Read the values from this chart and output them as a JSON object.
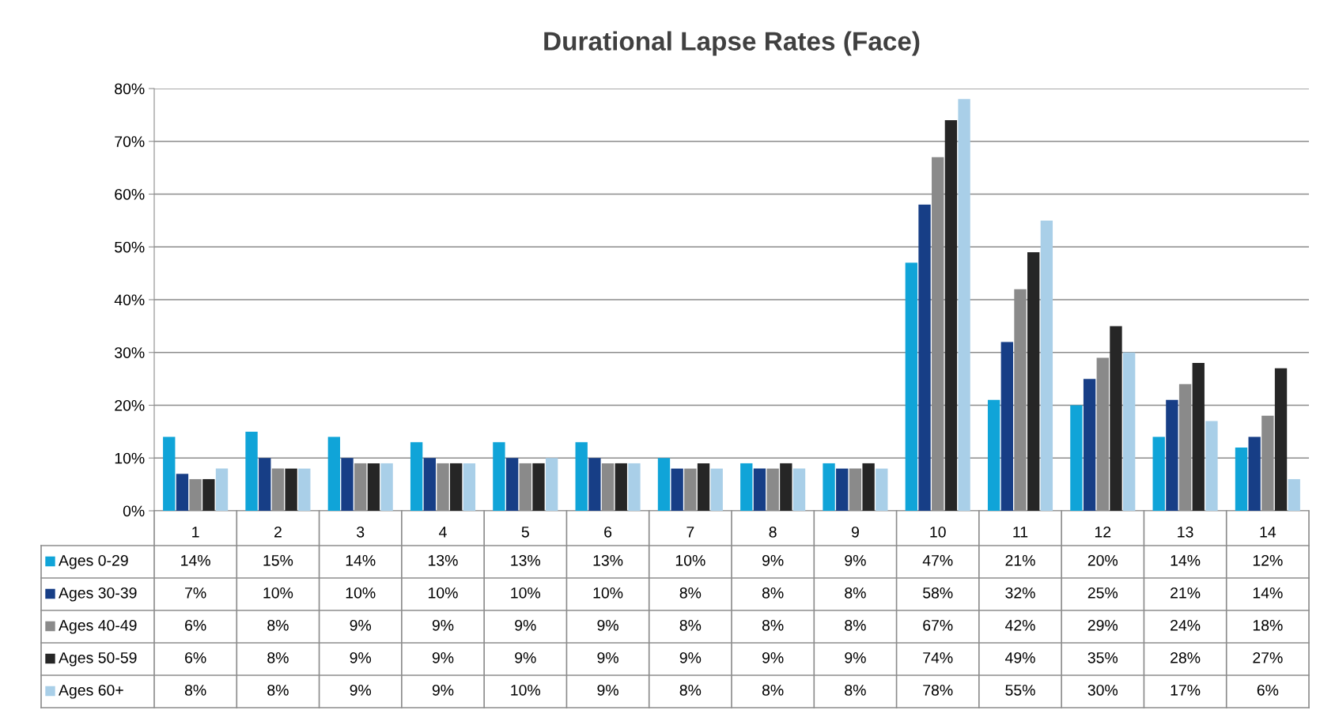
{
  "chart_data": {
    "type": "bar",
    "title": "Durational Lapse Rates (Face)",
    "categories": [
      "1",
      "2",
      "3",
      "4",
      "5",
      "6",
      "7",
      "8",
      "9",
      "10",
      "11",
      "12",
      "13",
      "14"
    ],
    "series": [
      {
        "name": "Ages 0-29",
        "color": "#10a4d8",
        "values": [
          14,
          15,
          14,
          13,
          13,
          13,
          10,
          9,
          9,
          47,
          21,
          20,
          14,
          12
        ],
        "value_labels": [
          "14%",
          "15%",
          "14%",
          "13%",
          "13%",
          "13%",
          "10%",
          "9%",
          "9%",
          "47%",
          "21%",
          "20%",
          "14%",
          "12%"
        ]
      },
      {
        "name": "Ages 30-39",
        "color": "#173e86",
        "values": [
          7,
          10,
          10,
          10,
          10,
          10,
          8,
          8,
          8,
          58,
          32,
          25,
          21,
          14
        ],
        "value_labels": [
          "7%",
          "10%",
          "10%",
          "10%",
          "10%",
          "10%",
          "8%",
          "8%",
          "8%",
          "58%",
          "32%",
          "25%",
          "21%",
          "14%"
        ]
      },
      {
        "name": "Ages 40-49",
        "color": "#8a8a8a",
        "values": [
          6,
          8,
          9,
          9,
          9,
          9,
          8,
          8,
          8,
          67,
          42,
          29,
          24,
          18
        ],
        "value_labels": [
          "6%",
          "8%",
          "9%",
          "9%",
          "9%",
          "9%",
          "8%",
          "8%",
          "8%",
          "67%",
          "42%",
          "29%",
          "24%",
          "18%"
        ]
      },
      {
        "name": "Ages 50-59",
        "color": "#262626",
        "values": [
          6,
          8,
          9,
          9,
          9,
          9,
          9,
          9,
          9,
          74,
          49,
          35,
          28,
          27
        ],
        "value_labels": [
          "6%",
          "8%",
          "9%",
          "9%",
          "9%",
          "9%",
          "9%",
          "9%",
          "9%",
          "74%",
          "49%",
          "35%",
          "28%",
          "27%"
        ]
      },
      {
        "name": "Ages 60+",
        "color": "#a9cfe8",
        "values": [
          8,
          8,
          9,
          9,
          10,
          9,
          8,
          8,
          8,
          78,
          55,
          30,
          17,
          6
        ],
        "value_labels": [
          "8%",
          "8%",
          "9%",
          "9%",
          "10%",
          "9%",
          "8%",
          "8%",
          "8%",
          "78%",
          "55%",
          "30%",
          "17%",
          "6%"
        ]
      }
    ],
    "ylim": [
      0,
      80
    ],
    "yticks": [
      {
        "value": 0,
        "label": "0%"
      },
      {
        "value": 10,
        "label": "10%"
      },
      {
        "value": 20,
        "label": "20%"
      },
      {
        "value": 30,
        "label": "30%"
      },
      {
        "value": 40,
        "label": "40%"
      },
      {
        "value": 50,
        "label": "50%"
      },
      {
        "value": 60,
        "label": "60%"
      },
      {
        "value": 70,
        "label": "70%"
      },
      {
        "value": 80,
        "label": "80%"
      }
    ],
    "grid": "y",
    "legend": "bottom left"
  }
}
